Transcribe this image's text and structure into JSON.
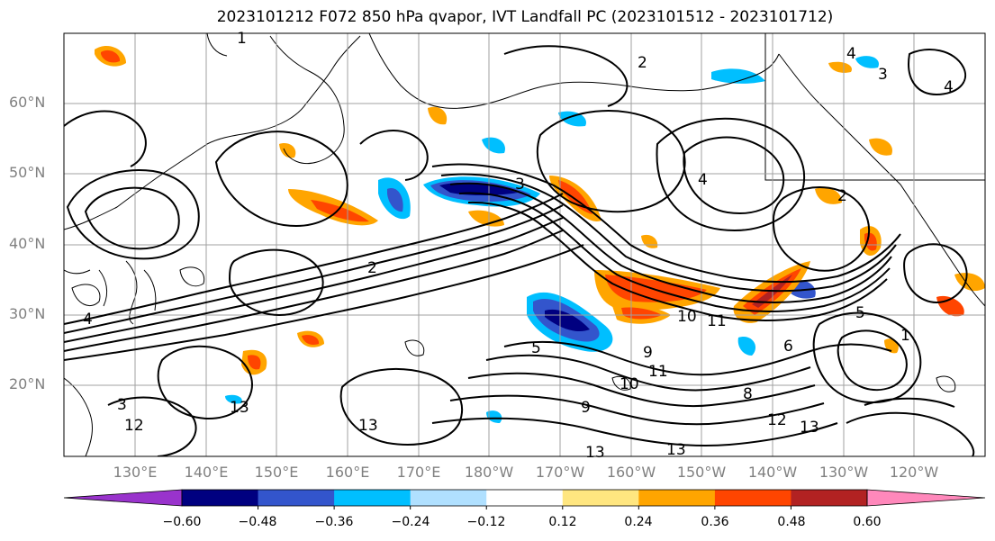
{
  "title": "2023101212 F072 850 hPa qvapor, IVT Landfall PC (2023101512 - 2023101712)",
  "map": {
    "lat_labels": [
      "60°N",
      "50°N",
      "40°N",
      "30°N",
      "20°N"
    ],
    "lon_labels": [
      "130°E",
      "140°E",
      "150°E",
      "160°E",
      "170°E",
      "180°W",
      "170°W",
      "160°W",
      "150°W",
      "140°W",
      "130°W",
      "120°W"
    ],
    "contour_labels": [
      "1",
      "2",
      "4",
      "3",
      "4",
      "2",
      "4",
      "2",
      "3",
      "5",
      "10",
      "11",
      "9",
      "8",
      "12",
      "13",
      "13",
      "13",
      "10",
      "11",
      "9",
      "4",
      "3",
      "12",
      "13",
      "13",
      "6",
      "5",
      "1"
    ],
    "colors": {
      "land_line": "#000000",
      "grid": "#a0a0a0",
      "contour": "#000000"
    }
  },
  "colorbar": {
    "ticks": [
      "−0.60",
      "−0.48",
      "−0.36",
      "−0.24",
      "−0.12",
      "0.12",
      "0.24",
      "0.36",
      "0.48",
      "0.60"
    ],
    "colors": [
      "#9933cc",
      "#000080",
      "#3355cc",
      "#00bfff",
      "#b0e0ff",
      "#ffffff",
      "#ffe680",
      "#ffa500",
      "#ff4500",
      "#b22222",
      "#ff88bb"
    ]
  }
}
